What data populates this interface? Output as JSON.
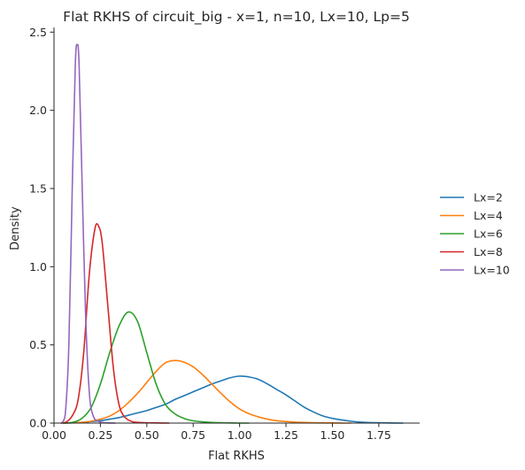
{
  "chart_data": {
    "type": "line",
    "title": "Flat RKHS of circuit_big - x=1, n=10, Lx=10, Lp=5",
    "xlabel": "Flat RKHS",
    "ylabel": "Density",
    "xlim": [
      0,
      1.97
    ],
    "ylim": [
      0,
      2.53
    ],
    "xticks": [
      "0.00",
      "0.25",
      "0.50",
      "0.75",
      "1.00",
      "1.25",
      "1.50",
      "1.75"
    ],
    "xtick_values": [
      0,
      0.25,
      0.5,
      0.75,
      1.0,
      1.25,
      1.5,
      1.75
    ],
    "yticks": [
      "0.0",
      "0.5",
      "1.0",
      "1.5",
      "2.0",
      "2.5"
    ],
    "ytick_values": [
      0,
      0.5,
      1.0,
      1.5,
      2.0,
      2.5
    ],
    "grid": false,
    "legend_position": "right",
    "series": [
      {
        "name": "Lx=2",
        "color": "#1f77b4",
        "x": [
          0.05,
          0.1,
          0.15,
          0.2,
          0.25,
          0.3,
          0.35,
          0.4,
          0.45,
          0.5,
          0.55,
          0.6,
          0.65,
          0.7,
          0.75,
          0.8,
          0.85,
          0.9,
          0.95,
          1.0,
          1.05,
          1.1,
          1.15,
          1.2,
          1.25,
          1.3,
          1.35,
          1.4,
          1.45,
          1.5,
          1.55,
          1.6,
          1.65,
          1.7,
          1.75,
          1.8,
          1.88
        ],
        "y": [
          0.0,
          0.002,
          0.005,
          0.01,
          0.015,
          0.025,
          0.035,
          0.05,
          0.065,
          0.08,
          0.1,
          0.12,
          0.15,
          0.175,
          0.2,
          0.225,
          0.25,
          0.27,
          0.29,
          0.3,
          0.295,
          0.28,
          0.25,
          0.215,
          0.18,
          0.14,
          0.1,
          0.07,
          0.045,
          0.03,
          0.02,
          0.012,
          0.006,
          0.003,
          0.002,
          0.001,
          0.0
        ]
      },
      {
        "name": "Lx=4",
        "color": "#ff7f0e",
        "x": [
          0.05,
          0.1,
          0.15,
          0.2,
          0.25,
          0.3,
          0.35,
          0.4,
          0.45,
          0.5,
          0.55,
          0.6,
          0.65,
          0.7,
          0.75,
          0.8,
          0.85,
          0.9,
          0.95,
          1.0,
          1.05,
          1.1,
          1.15,
          1.2,
          1.25,
          1.3,
          1.35,
          1.4,
          1.45,
          1.5,
          1.55,
          1.6
        ],
        "y": [
          0.0,
          0.002,
          0.005,
          0.012,
          0.025,
          0.045,
          0.08,
          0.13,
          0.19,
          0.26,
          0.33,
          0.385,
          0.4,
          0.39,
          0.36,
          0.31,
          0.25,
          0.19,
          0.135,
          0.09,
          0.06,
          0.04,
          0.025,
          0.015,
          0.01,
          0.006,
          0.004,
          0.002,
          0.001,
          0.001,
          0.0,
          0.0
        ]
      },
      {
        "name": "Lx=6",
        "color": "#2ca02c",
        "x": [
          0.05,
          0.1,
          0.15,
          0.2,
          0.25,
          0.3,
          0.35,
          0.4,
          0.45,
          0.5,
          0.55,
          0.6,
          0.65,
          0.7,
          0.75,
          0.8,
          0.85,
          0.9,
          0.95,
          1.0,
          1.05
        ],
        "y": [
          0.0,
          0.005,
          0.03,
          0.1,
          0.25,
          0.45,
          0.62,
          0.71,
          0.65,
          0.45,
          0.25,
          0.12,
          0.06,
          0.03,
          0.015,
          0.008,
          0.004,
          0.002,
          0.001,
          0.0,
          0.0
        ]
      },
      {
        "name": "Lx=8",
        "color": "#d62728",
        "x": [
          0.04,
          0.07,
          0.1,
          0.13,
          0.16,
          0.19,
          0.22,
          0.24,
          0.26,
          0.29,
          0.32,
          0.35,
          0.38,
          0.42,
          0.46,
          0.5,
          0.55,
          0.62
        ],
        "y": [
          0.0,
          0.01,
          0.05,
          0.15,
          0.45,
          0.95,
          1.24,
          1.26,
          1.15,
          0.75,
          0.35,
          0.12,
          0.04,
          0.01,
          0.004,
          0.002,
          0.001,
          0.0
        ]
      },
      {
        "name": "Lx=10",
        "color": "#9467bd",
        "x": [
          0.04,
          0.06,
          0.08,
          0.1,
          0.115,
          0.125,
          0.135,
          0.15,
          0.17,
          0.19,
          0.21,
          0.24,
          0.28,
          0.33
        ],
        "y": [
          0.0,
          0.05,
          0.5,
          1.6,
          2.3,
          2.42,
          2.3,
          1.6,
          0.7,
          0.2,
          0.05,
          0.01,
          0.002,
          0.0
        ]
      }
    ]
  }
}
